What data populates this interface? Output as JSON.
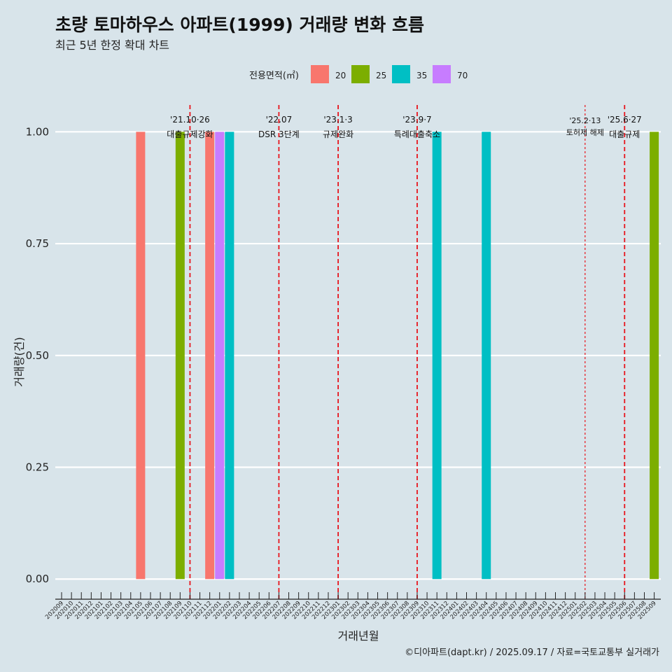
{
  "chart_data": {
    "type": "bar",
    "title": "초량 토마하우스 아파트(1999) 거래량 변화 흐름",
    "subtitle": "최근 5년 한정 확대 차트",
    "xlabel": "거래년월",
    "ylabel": "거래량(건)",
    "ylim": [
      -0.045,
      1.06
    ],
    "yticks": [
      0.0,
      0.25,
      0.5,
      0.75,
      1.0
    ],
    "ytick_labels": [
      "0.00",
      "0.25",
      "0.50",
      "0.75",
      "1.00"
    ],
    "grid": true,
    "legend": {
      "title": "전용면적(㎡)",
      "placement": "top",
      "entries": [
        {
          "name": "20",
          "color": "#f8766d"
        },
        {
          "name": "25",
          "color": "#7cae00"
        },
        {
          "name": "35",
          "color": "#00bfc4"
        },
        {
          "name": "70",
          "color": "#c77cff"
        }
      ]
    },
    "categories": [
      "202009",
      "202010",
      "202011",
      "202012",
      "202101",
      "202102",
      "202103",
      "202104",
      "202105",
      "202106",
      "202107",
      "202108",
      "202109",
      "202110",
      "202111",
      "202112",
      "202201",
      "202202",
      "202203",
      "202204",
      "202205",
      "202206",
      "202207",
      "202208",
      "202209",
      "202210",
      "202211",
      "202212",
      "202301",
      "202302",
      "202303",
      "202304",
      "202305",
      "202306",
      "202307",
      "202308",
      "202309",
      "202310",
      "202311",
      "202312",
      "202401",
      "202402",
      "202403",
      "202404",
      "202405",
      "202406",
      "202407",
      "202408",
      "202409",
      "202410",
      "202411",
      "202412",
      "202501",
      "202502",
      "202503",
      "202504",
      "202505",
      "202506",
      "202507",
      "202508",
      "202509"
    ],
    "bars": [
      {
        "month": "202105",
        "area": "20",
        "value": 1
      },
      {
        "month": "202109",
        "area": "25",
        "value": 1
      },
      {
        "month": "202112",
        "area": "20",
        "value": 1
      },
      {
        "month": "202201",
        "area": "70",
        "value": 1
      },
      {
        "month": "202202",
        "area": "35",
        "value": 1
      },
      {
        "month": "202311",
        "area": "35",
        "value": 1
      },
      {
        "month": "202404",
        "area": "35",
        "value": 1
      },
      {
        "month": "202509",
        "area": "25",
        "value": 1
      }
    ],
    "events": [
      {
        "month": "202110",
        "date": "'21.10·26",
        "label": "대출규제강화",
        "style": "dashed"
      },
      {
        "month": "202207",
        "date": "'22.07",
        "label": "DSR 3단계",
        "style": "dashed"
      },
      {
        "month": "202301",
        "date": "'23.1·3",
        "label": "규제완화",
        "style": "dashed"
      },
      {
        "month": "202309",
        "date": "'23.9·7",
        "label": "특례대출축소",
        "style": "dashed"
      },
      {
        "month": "202502",
        "date": "'25.2·13",
        "label": "토허제 해제",
        "style": "dotted"
      },
      {
        "month": "202506",
        "date": "'25.6·27",
        "label": "대출규제",
        "style": "dashed"
      }
    ]
  },
  "caption": "©디아파트(dapt.kr) / 2025.09.17 / 자료=국토교통부 실거래가",
  "colors": {
    "background": "#d8e4ea",
    "gridline": "#ffffff",
    "event_line": "#e8141c"
  }
}
